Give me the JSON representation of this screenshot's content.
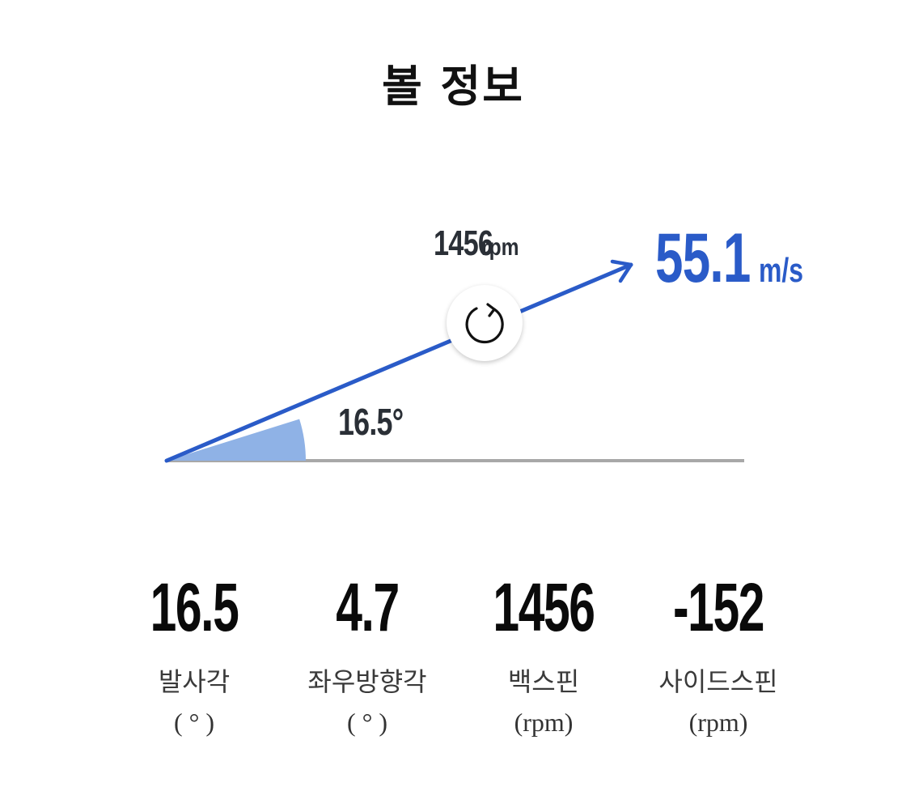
{
  "page": {
    "title": "볼 정보"
  },
  "diagram": {
    "spin_value": "1456",
    "spin_unit": "rpm",
    "speed_value": "55.1",
    "speed_unit": "m/s",
    "launch_angle_label": "16.5°",
    "launch_angle_deg": 16.5,
    "colors": {
      "trajectory": "#2a5bc8",
      "angle_fill": "#8fb2e6",
      "ground_line": "#a8a8a8",
      "text_dark": "#2a2f36"
    },
    "icons": {
      "spin": "rotate-icon",
      "direction": "arrow-head-icon"
    }
  },
  "stats": [
    {
      "value": "16.5",
      "label": "발사각",
      "unit": "( ° )"
    },
    {
      "value": "4.7",
      "label": "좌우방향각",
      "unit": "( ° )"
    },
    {
      "value": "1456",
      "label": "백스핀",
      "unit": "(rpm)"
    },
    {
      "value": "-152",
      "label": "사이드스핀",
      "unit": "(rpm)"
    }
  ]
}
